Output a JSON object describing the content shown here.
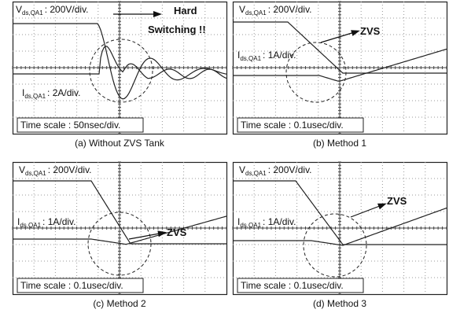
{
  "panels": [
    {
      "caption": "(a) Without ZVS Tank",
      "voltage": {
        "symbol": "V",
        "subscript": "ds,QA1",
        "scale": ": 200V/div."
      },
      "current": {
        "symbol": "I",
        "subscript": "ds,QA1",
        "scale": ": 2A/div."
      },
      "time_scale": "Time scale : 50nsec/div.",
      "annotation": [
        "Hard",
        "Switching !!"
      ]
    },
    {
      "caption": "(b) Method 1",
      "voltage": {
        "symbol": "V",
        "subscript": "ds,QA1",
        "scale": ": 200V/div."
      },
      "current": {
        "symbol": "I",
        "subscript": "ds,QA1",
        "scale": ": 1A/div."
      },
      "time_scale": "Time scale : 0.1usec/div.",
      "annotation": [
        "ZVS"
      ]
    },
    {
      "caption": "(c) Method 2",
      "voltage": {
        "symbol": "V",
        "subscript": "ds,QA1",
        "scale": ": 200V/div."
      },
      "current": {
        "symbol": "I",
        "subscript": "ds,QA1",
        "scale": ": 1A/div."
      },
      "time_scale": "Time scale : 0.1usec/div.",
      "annotation": [
        "ZVS"
      ]
    },
    {
      "caption": "(d) Method 3",
      "voltage": {
        "symbol": "V",
        "subscript": "ds,QA1",
        "scale": ": 200V/div."
      },
      "current": {
        "symbol": "I",
        "subscript": "ds,QA1",
        "scale": ": 1A/div."
      },
      "time_scale": "Time scale : 0.1usec/div.",
      "annotation": [
        "ZVS"
      ]
    }
  ]
}
